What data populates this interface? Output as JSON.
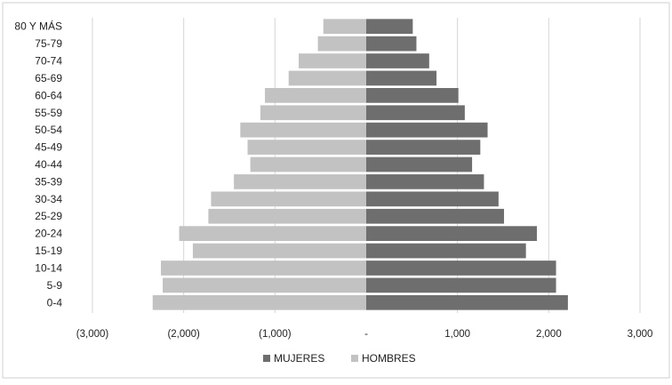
{
  "chart_data": {
    "type": "bar",
    "orientation": "horizontal",
    "layout": "population-pyramid",
    "title": "",
    "xlabel": "",
    "ylabel": "",
    "categories": [
      "0-4",
      "5-9",
      "10-14",
      "15-19",
      "20-24",
      "25-29",
      "30-34",
      "35-39",
      "40-44",
      "45-49",
      "50-54",
      "55-59",
      "60-64",
      "65-69",
      "70-74",
      "75-79",
      "80 Y MÁS"
    ],
    "series": [
      {
        "name": "MUJERES",
        "color": "#6e6e6e",
        "values": [
          2210,
          2080,
          2080,
          1750,
          1870,
          1510,
          1450,
          1290,
          1160,
          1250,
          1330,
          1080,
          1010,
          770,
          690,
          550,
          510
        ]
      },
      {
        "name": "HOMBRES",
        "color": "#c2c2c2",
        "values": [
          -2340,
          -2230,
          -2250,
          -1900,
          -2050,
          -1730,
          -1700,
          -1450,
          -1270,
          -1300,
          -1380,
          -1160,
          -1110,
          -850,
          -740,
          -530,
          -470
        ]
      }
    ],
    "xlim": [
      -3000,
      3000
    ],
    "x_ticks": [
      -3000,
      -2000,
      -1000,
      0,
      1000,
      2000,
      3000
    ],
    "x_tick_labels": [
      "(3,000)",
      "(2,000)",
      "(1,000)",
      "-",
      "1,000",
      "2,000",
      "3,000"
    ],
    "grid": "vertical",
    "legend": {
      "position": "bottom",
      "entries": [
        "MUJERES",
        "HOMBRES"
      ]
    }
  }
}
